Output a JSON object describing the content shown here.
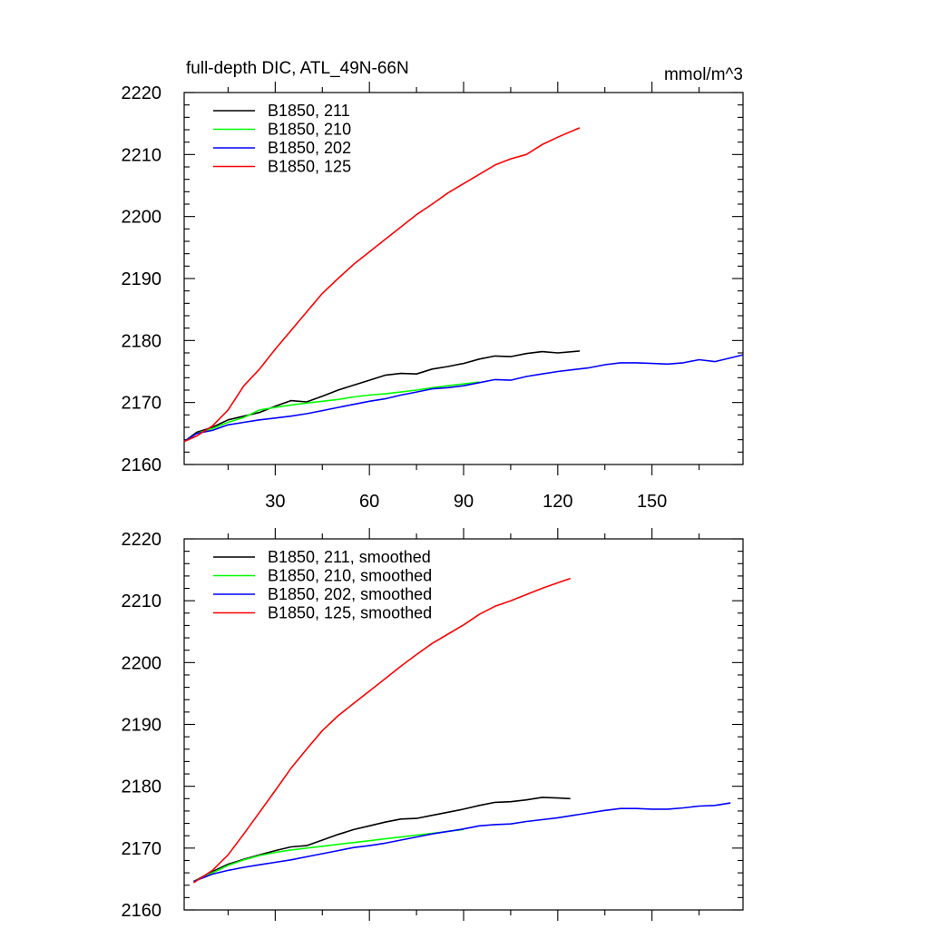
{
  "chart_data": [
    {
      "type": "line",
      "title": "full-depth DIC, ATL_49N-66N",
      "units_label": "mmol/m^3",
      "xlim": [
        1,
        179
      ],
      "ylim": [
        2160,
        2220
      ],
      "x_ticks": [
        30,
        60,
        90,
        120,
        150
      ],
      "y_ticks": [
        2160,
        2170,
        2180,
        2190,
        2200,
        2210,
        2220
      ],
      "show_x_tick_labels": true,
      "legend_position": "top-left",
      "series": [
        {
          "name": "B1850, 211",
          "color": "#000000",
          "x": [
            1,
            5,
            10,
            15,
            20,
            25,
            30,
            35,
            40,
            45,
            50,
            55,
            60,
            65,
            70,
            75,
            80,
            85,
            90,
            95,
            100,
            105,
            110,
            115,
            120,
            127
          ],
          "y": [
            2163.7,
            2165.2,
            2166.0,
            2167.2,
            2167.8,
            2168.4,
            2169.4,
            2170.3,
            2170.1,
            2171.0,
            2172.0,
            2172.8,
            2173.6,
            2174.4,
            2174.7,
            2174.6,
            2175.4,
            2175.8,
            2176.3,
            2177.0,
            2177.5,
            2177.4,
            2177.9,
            2178.2,
            2178.0,
            2178.3
          ]
        },
        {
          "name": "B1850, 210",
          "color": "#00ff00",
          "x": [
            1,
            5,
            10,
            15,
            20,
            25,
            30,
            35,
            40,
            45,
            50,
            55,
            60,
            65,
            70,
            75,
            80,
            85,
            90,
            95
          ],
          "y": [
            2163.7,
            2165.0,
            2165.8,
            2166.8,
            2167.6,
            2168.8,
            2169.2,
            2169.6,
            2169.9,
            2170.2,
            2170.5,
            2170.9,
            2171.2,
            2171.4,
            2171.7,
            2172.0,
            2172.4,
            2172.7,
            2173.0,
            2173.3
          ]
        },
        {
          "name": "B1850, 202",
          "color": "#0000ff",
          "x": [
            1,
            5,
            10,
            15,
            20,
            25,
            30,
            35,
            40,
            45,
            50,
            55,
            60,
            65,
            70,
            75,
            80,
            85,
            90,
            95,
            100,
            105,
            110,
            115,
            120,
            125,
            130,
            135,
            140,
            145,
            150,
            155,
            160,
            165,
            170,
            175,
            179
          ],
          "y": [
            2163.7,
            2165.0,
            2165.5,
            2166.4,
            2166.8,
            2167.2,
            2167.5,
            2167.8,
            2168.2,
            2168.7,
            2169.2,
            2169.7,
            2170.2,
            2170.6,
            2171.2,
            2171.7,
            2172.2,
            2172.4,
            2172.7,
            2173.2,
            2173.7,
            2173.6,
            2174.2,
            2174.6,
            2175.0,
            2175.3,
            2175.6,
            2176.1,
            2176.4,
            2176.4,
            2176.3,
            2176.2,
            2176.4,
            2176.9,
            2176.6,
            2177.2,
            2177.7
          ]
        },
        {
          "name": "B1850, 125",
          "color": "#ff0000",
          "x": [
            1,
            5,
            10,
            15,
            20,
            25,
            30,
            35,
            40,
            45,
            50,
            55,
            60,
            65,
            70,
            75,
            80,
            85,
            90,
            95,
            100,
            105,
            110,
            115,
            120,
            127
          ],
          "y": [
            2163.7,
            2164.6,
            2166.2,
            2168.8,
            2172.7,
            2175.4,
            2178.6,
            2181.6,
            2184.6,
            2187.6,
            2190.0,
            2192.3,
            2194.3,
            2196.3,
            2198.3,
            2200.3,
            2202.0,
            2203.8,
            2205.3,
            2206.8,
            2208.3,
            2209.3,
            2210.0,
            2211.6,
            2212.8,
            2214.3
          ]
        }
      ]
    },
    {
      "type": "line",
      "title": "",
      "xlim": [
        1,
        179
      ],
      "ylim": [
        2160,
        2220
      ],
      "x_ticks": [
        30,
        60,
        90,
        120,
        150
      ],
      "y_ticks": [
        2160,
        2170,
        2180,
        2190,
        2200,
        2210,
        2220
      ],
      "show_x_tick_labels": false,
      "legend_position": "top-left",
      "series": [
        {
          "name": "B1850, 211, smoothed",
          "color": "#000000",
          "x": [
            4,
            10,
            15,
            20,
            25,
            30,
            35,
            40,
            45,
            50,
            55,
            60,
            65,
            70,
            75,
            80,
            85,
            90,
            95,
            100,
            105,
            110,
            115,
            120,
            124
          ],
          "y": [
            2164.6,
            2166.2,
            2167.4,
            2168.2,
            2168.9,
            2169.6,
            2170.2,
            2170.4,
            2171.3,
            2172.2,
            2173.0,
            2173.6,
            2174.2,
            2174.7,
            2174.8,
            2175.3,
            2175.8,
            2176.3,
            2176.9,
            2177.4,
            2177.5,
            2177.8,
            2178.2,
            2178.1,
            2178.0
          ]
        },
        {
          "name": "B1850, 210, smoothed",
          "color": "#00ff00",
          "x": [
            4,
            10,
            15,
            20,
            25,
            30,
            35,
            40,
            45,
            50,
            55,
            60,
            65,
            70,
            75,
            80,
            85,
            90
          ],
          "y": [
            2164.6,
            2166.0,
            2167.2,
            2168.1,
            2168.8,
            2169.3,
            2169.7,
            2170.0,
            2170.3,
            2170.6,
            2170.9,
            2171.2,
            2171.5,
            2171.8,
            2172.1,
            2172.4,
            2172.7,
            2173.0
          ]
        },
        {
          "name": "B1850, 202, smoothed",
          "color": "#0000ff",
          "x": [
            4,
            10,
            15,
            20,
            25,
            30,
            35,
            40,
            45,
            50,
            55,
            60,
            65,
            70,
            75,
            80,
            85,
            90,
            95,
            100,
            105,
            110,
            115,
            120,
            125,
            130,
            135,
            140,
            145,
            150,
            155,
            160,
            165,
            170,
            175
          ],
          "y": [
            2164.6,
            2165.8,
            2166.4,
            2166.9,
            2167.3,
            2167.7,
            2168.1,
            2168.6,
            2169.1,
            2169.6,
            2170.1,
            2170.4,
            2170.8,
            2171.3,
            2171.8,
            2172.3,
            2172.7,
            2173.1,
            2173.6,
            2173.8,
            2173.9,
            2174.3,
            2174.6,
            2174.9,
            2175.3,
            2175.7,
            2176.1,
            2176.4,
            2176.4,
            2176.3,
            2176.3,
            2176.5,
            2176.8,
            2176.9,
            2177.3
          ]
        },
        {
          "name": "B1850, 125, smoothed",
          "color": "#ff0000",
          "x": [
            4,
            10,
            15,
            20,
            25,
            30,
            35,
            40,
            45,
            50,
            55,
            60,
            65,
            70,
            75,
            80,
            85,
            90,
            95,
            100,
            105,
            110,
            115,
            120,
            124
          ],
          "y": [
            2164.4,
            2166.4,
            2168.9,
            2172.3,
            2175.8,
            2179.3,
            2182.9,
            2186.0,
            2189.0,
            2191.4,
            2193.4,
            2195.4,
            2197.4,
            2199.4,
            2201.3,
            2203.1,
            2204.6,
            2206.1,
            2207.8,
            2209.1,
            2210.0,
            2211.0,
            2212.0,
            2212.9,
            2213.6
          ]
        }
      ]
    }
  ]
}
